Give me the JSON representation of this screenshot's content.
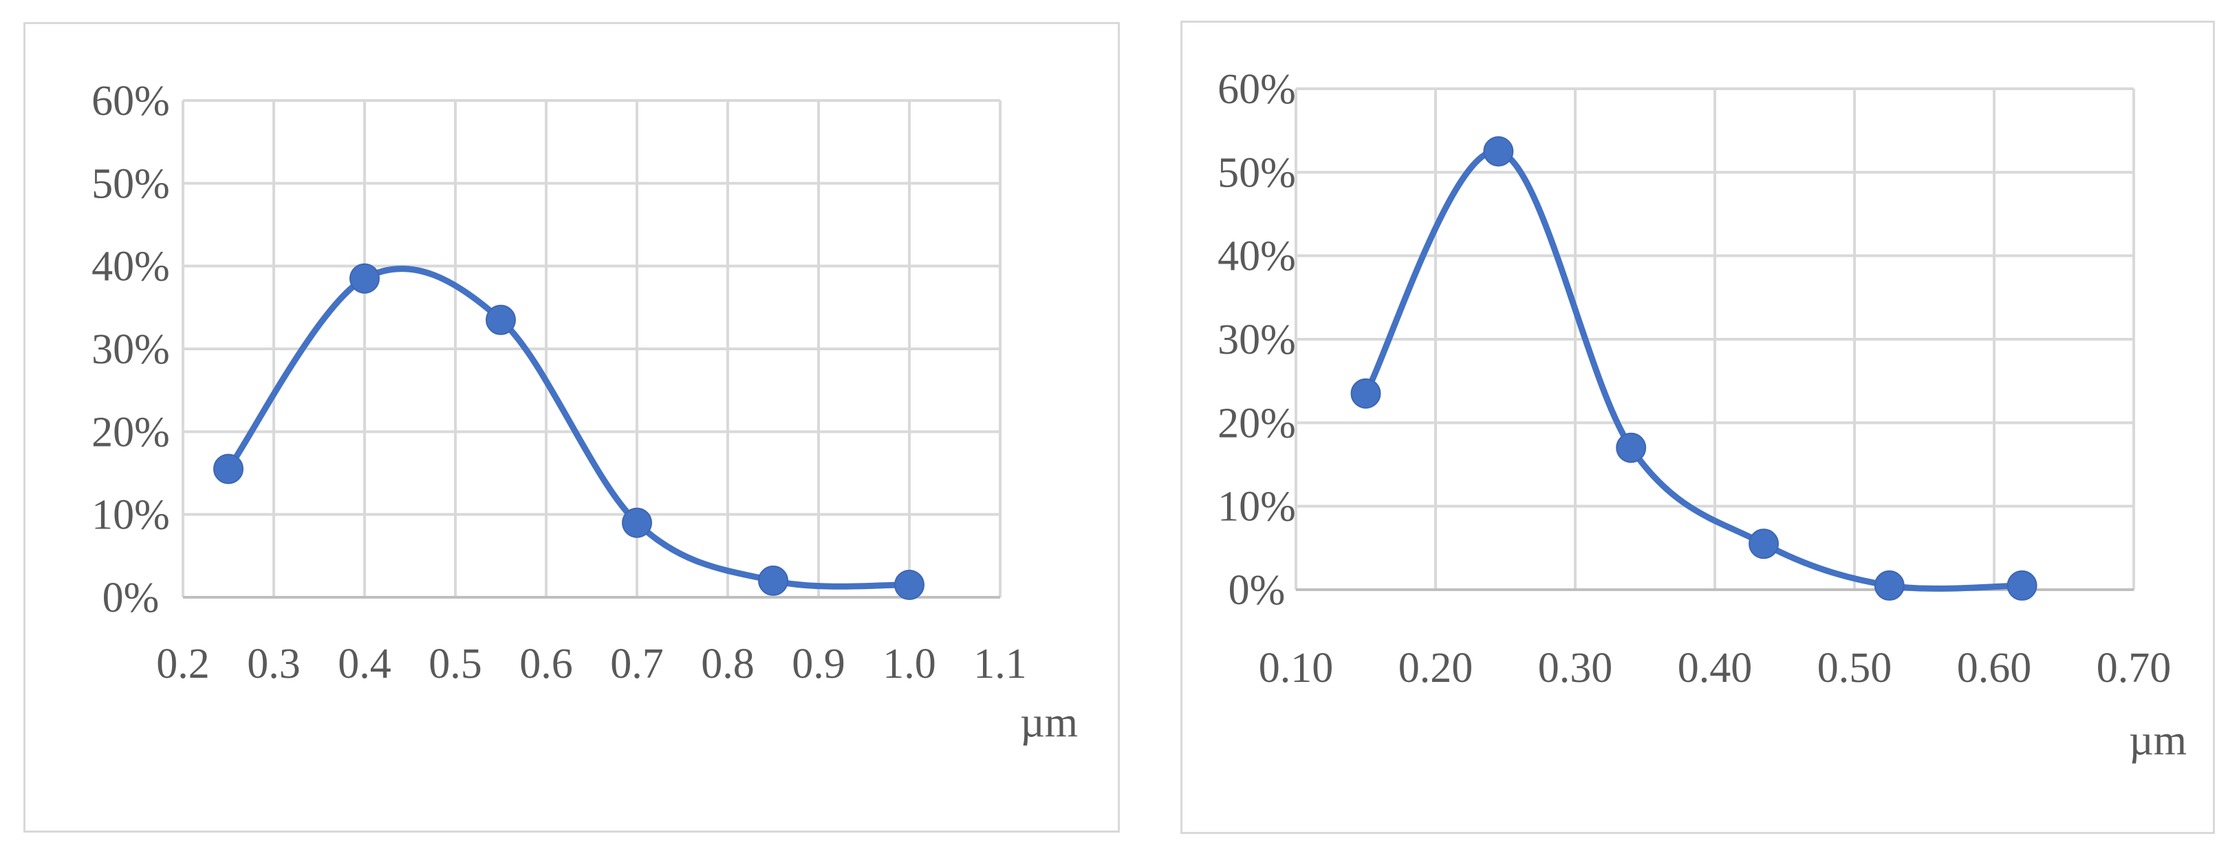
{
  "chart_data": [
    {
      "type": "line",
      "smooth": true,
      "markers": true,
      "xlabel": "µm",
      "ylabel": "",
      "x_ticks": [
        "0.2",
        "0.3",
        "0.4",
        "0.5",
        "0.6",
        "0.7",
        "0.8",
        "0.9",
        "1.0",
        "1.1"
      ],
      "y_ticks": [
        "0%",
        "10%",
        "20%",
        "30%",
        "40%",
        "50%",
        "60%"
      ],
      "xlim": [
        0.2,
        1.1
      ],
      "ylim": [
        0,
        60
      ],
      "grid": true,
      "legend": "none",
      "color": "#4472c4",
      "x": [
        0.25,
        0.4,
        0.55,
        0.7,
        0.85,
        1.0
      ],
      "y": [
        15.5,
        38.5,
        33.5,
        9.0,
        2.0,
        1.5
      ]
    },
    {
      "type": "line",
      "smooth": true,
      "markers": true,
      "xlabel": "µm",
      "ylabel": "",
      "x_ticks": [
        "0.10",
        "0.20",
        "0.30",
        "0.40",
        "0.50",
        "0.60",
        "0.70"
      ],
      "y_ticks": [
        "0%",
        "10%",
        "20%",
        "30%",
        "40%",
        "50%",
        "60%"
      ],
      "xlim": [
        0.1,
        0.7
      ],
      "ylim": [
        0,
        60
      ],
      "grid": true,
      "legend": "none",
      "color": "#4472c4",
      "x": [
        0.15,
        0.245,
        0.34,
        0.435,
        0.525,
        0.62
      ],
      "y": [
        23.5,
        52.5,
        17.0,
        5.5,
        0.5,
        0.5
      ]
    }
  ]
}
